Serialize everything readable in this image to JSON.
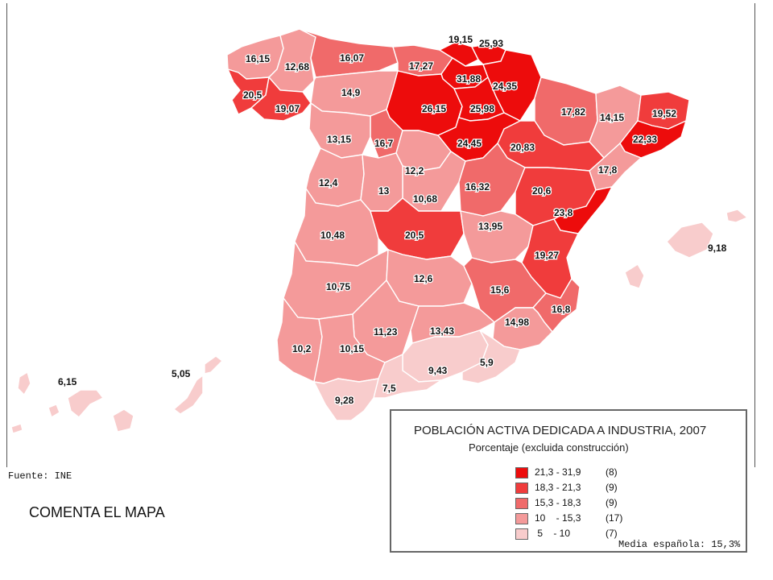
{
  "map": {
    "source": "Fuente: INE",
    "values": {
      "a_coruna": "16,15",
      "lugo": "12,68",
      "asturias": "16,07",
      "cantabria": "17,27",
      "vizcaya": "19,15",
      "guipuzcoa": "25,93",
      "alava": "31,88",
      "navarra": "24,35",
      "pontevedra": "20,5",
      "ourense": "19,07",
      "leon": "14,9",
      "burgos": "26,15",
      "la_rioja": "25,98",
      "huesca": "17,82",
      "lleida": "14,15",
      "girona": "19,52",
      "barcelona": "22,33",
      "tarragona": "17,8",
      "zaragoza": "20,83",
      "soria": "24,45",
      "palencia": "16,7",
      "zamora": "13,15",
      "valladolid": "12,2",
      "segovia": "10,68",
      "salamanca": "12,4",
      "avila": "13",
      "guadalajara": "16,32",
      "teruel": "20,6",
      "castellon": "23,8",
      "caceres": "10,48",
      "toledo": "20,5",
      "cuenca": "13,95",
      "valencia": "19,27",
      "badajoz": "10,75",
      "ciudad_real": "12,6",
      "albacete": "15,6",
      "alicante": "16,8",
      "murcia": "14,98",
      "cordoba": "11,23",
      "jaen": "13,43",
      "huelva": "10,2",
      "sevilla": "10,15",
      "granada": "9,43",
      "almeria": "5,9",
      "malaga": "7,5",
      "cadiz": "9,28",
      "baleares": "9,18",
      "tenerife": "6,15",
      "las_palmas": "5,05"
    },
    "class_colors": {
      "c1": "#ed0c0c",
      "c2": "#f03c3c",
      "c3": "#f06a6a",
      "c4": "#f49a9a",
      "c5": "#f8cccc"
    }
  },
  "legend": {
    "title": "POBLACIÓN ACTIVA DEDICADA A INDUSTRIA, 2007",
    "subtitle": "Porcentaje (excluida construcción)",
    "classes": [
      {
        "range": "21,3 - 31,9",
        "count": "(8)",
        "color": "#ed0c0c"
      },
      {
        "range": "18,3 - 21,3",
        "count": "(9)",
        "color": "#f03c3c"
      },
      {
        "range": "15,3 - 18,3",
        "count": "(9)",
        "color": "#f06a6a"
      },
      {
        "range": "10    - 15,3",
        "count": "(17)",
        "color": "#f49a9a"
      },
      {
        "range": " 5    - 10",
        "count": "(7)",
        "color": "#f8cccc"
      }
    ],
    "average": "Media española: 15,3%"
  },
  "prompt": "COMENTA EL MAPA"
}
